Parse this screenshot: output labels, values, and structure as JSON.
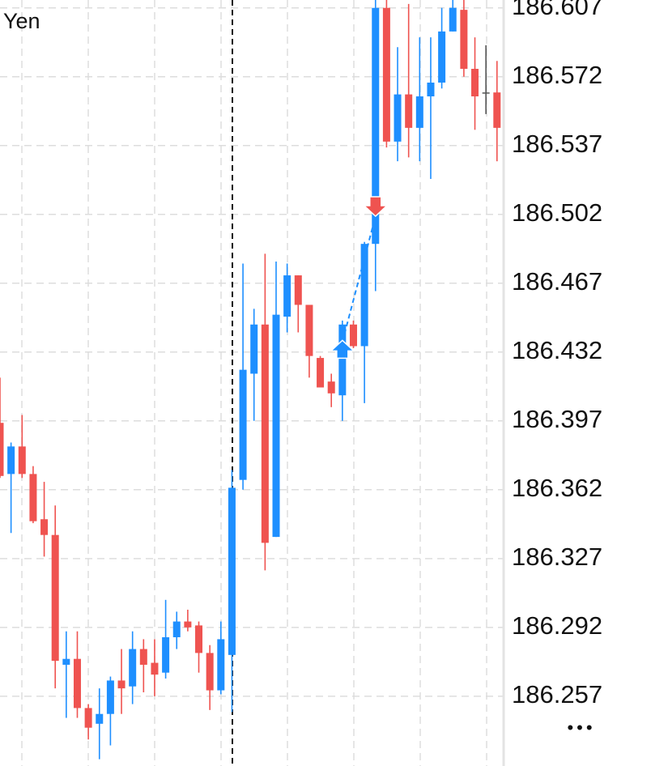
{
  "chart_data": {
    "type": "candlestick",
    "title": "Yen",
    "up_color": "#1e8fff",
    "down_color": "#ef5350",
    "doji_color": "#555555",
    "open": [
      186.396,
      186.37,
      186.384,
      186.37,
      186.347,
      186.339,
      186.273,
      186.276,
      186.251,
      186.243,
      186.248,
      186.265,
      186.262,
      186.281,
      186.274,
      186.269,
      186.287,
      186.295,
      186.293,
      186.279,
      186.26,
      186.278,
      186.367,
      186.421,
      186.446,
      186.338,
      186.45,
      186.471,
      186.456,
      186.429,
      186.417,
      186.41,
      186.446,
      186.435,
      186.487,
      186.607,
      186.539,
      186.563,
      186.546,
      186.562,
      186.569,
      186.595,
      186.606,
      186.576,
      186.564,
      186.564
    ],
    "high": [
      186.419,
      186.386,
      186.4,
      186.374,
      186.366,
      186.354,
      186.29,
      186.29,
      186.253,
      186.261,
      186.267,
      186.281,
      186.29,
      186.286,
      186.286,
      186.306,
      186.3,
      186.301,
      186.295,
      186.283,
      186.295,
      186.372,
      186.477,
      186.454,
      186.482,
      186.478,
      186.477,
      186.471,
      186.456,
      186.43,
      186.421,
      186.448,
      186.448,
      186.488,
      186.611,
      186.611,
      186.587,
      186.609,
      186.592,
      186.592,
      186.607,
      186.611,
      186.611,
      186.592,
      186.588,
      186.58
    ],
    "low": [
      186.368,
      186.34,
      186.368,
      186.345,
      186.328,
      186.261,
      186.246,
      186.246,
      186.235,
      186.225,
      186.232,
      186.248,
      186.253,
      186.259,
      186.257,
      186.266,
      186.281,
      186.29,
      186.269,
      186.25,
      186.258,
      186.249,
      186.362,
      186.397,
      186.321,
      186.338,
      186.442,
      186.442,
      186.419,
      186.414,
      186.404,
      186.397,
      186.434,
      186.406,
      186.463,
      186.536,
      186.529,
      186.531,
      186.529,
      186.52,
      186.566,
      186.595,
      186.572,
      186.545,
      186.553,
      186.529
    ],
    "close": [
      186.369,
      186.384,
      186.37,
      186.346,
      186.339,
      186.275,
      186.276,
      186.251,
      186.241,
      186.248,
      186.265,
      186.261,
      186.281,
      186.273,
      186.268,
      186.287,
      186.295,
      186.292,
      186.279,
      186.26,
      186.286,
      186.363,
      186.423,
      186.446,
      186.335,
      186.451,
      186.471,
      186.456,
      186.43,
      186.414,
      186.411,
      186.446,
      186.435,
      186.487,
      186.607,
      186.539,
      186.563,
      186.546,
      186.562,
      186.569,
      186.595,
      186.607,
      186.576,
      186.562,
      186.564,
      186.546
    ],
    "trades": [
      {
        "entry_index": 31,
        "entry_price": 186.433,
        "exit_index": 34,
        "exit_price": 186.506
      }
    ],
    "ylim": [
      186.224,
      186.611
    ],
    "yticks": [
      186.257,
      186.292,
      186.327,
      186.362,
      186.397,
      186.432,
      186.467,
      186.502,
      186.537,
      186.572,
      186.607
    ],
    "grid": true
  },
  "more_button": "•••"
}
